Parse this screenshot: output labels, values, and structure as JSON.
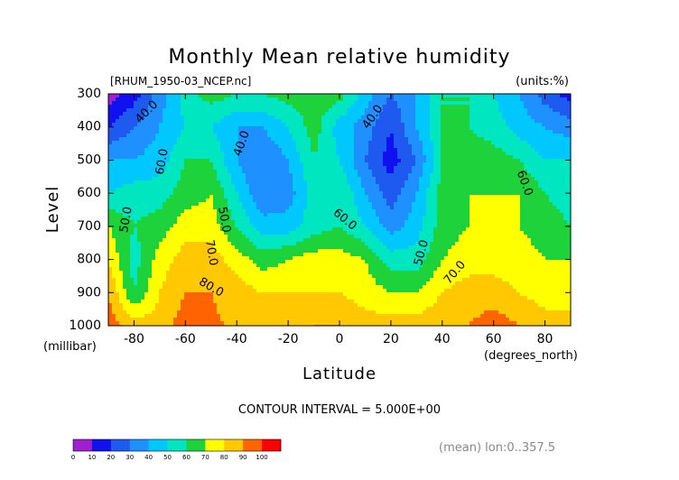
{
  "chart_data": {
    "type": "heatmap",
    "title": "Monthly Mean relative humidity",
    "source_label": "[RHUM_1950-03_NCEP.nc]",
    "units_label": "(units:%)",
    "xlabel": "Latitude",
    "ylabel": "Level",
    "y_unit_label": "(millibar)",
    "x_unit_label": "(degrees_north)",
    "footer_left": "CONTOUR INTERVAL = 5.000E+00",
    "footer_right": "(mean) lon:0..357.5",
    "xlim": [
      -90,
      90
    ],
    "ylim": [
      300,
      1000
    ],
    "x_ticks": [
      -80,
      -60,
      -40,
      -20,
      0,
      20,
      40,
      60,
      80
    ],
    "x_tick_labels": [
      "-80",
      "-60",
      "-40",
      "-20",
      "0",
      "20",
      "40",
      "60",
      "80"
    ],
    "y_ticks": [
      300,
      400,
      500,
      600,
      700,
      800,
      900,
      1000
    ],
    "y_tick_labels": [
      "300",
      "400",
      "500",
      "600",
      "700",
      "800",
      "900",
      "1000"
    ],
    "contour_interval": 5,
    "contour_labels": [
      {
        "text": "40.0",
        "lat": -75,
        "lev": 355,
        "angle": -45
      },
      {
        "text": "60.0",
        "lat": -69,
        "lev": 505,
        "angle": -80
      },
      {
        "text": "50.0",
        "lat": -83,
        "lev": 680,
        "angle": -80
      },
      {
        "text": "40.0",
        "lat": -38,
        "lev": 450,
        "angle": -70
      },
      {
        "text": "50.0",
        "lat": -45,
        "lev": 680,
        "angle": 80
      },
      {
        "text": "70.0",
        "lat": -50,
        "lev": 780,
        "angle": 80
      },
      {
        "text": "80.0",
        "lat": -50,
        "lev": 885,
        "angle": 30
      },
      {
        "text": "60.0",
        "lat": 2,
        "lev": 680,
        "angle": 40
      },
      {
        "text": "40.0",
        "lat": 13,
        "lev": 370,
        "angle": -55
      },
      {
        "text": "50.0",
        "lat": 32,
        "lev": 780,
        "angle": -75
      },
      {
        "text": "70.0",
        "lat": 45,
        "lev": 840,
        "angle": -50
      },
      {
        "text": "60.0",
        "lat": 72,
        "lev": 570,
        "angle": 70
      }
    ],
    "colorbar": {
      "levels": [
        0,
        10,
        20,
        30,
        40,
        50,
        60,
        70,
        80,
        90,
        100
      ],
      "labels": [
        "0",
        "10",
        "20",
        "30",
        "40",
        "50",
        "60",
        "70",
        "80",
        "90",
        "100"
      ],
      "colors": [
        "#a020d0",
        "#1010f0",
        "#1e5af0",
        "#1e90ff",
        "#00c8ff",
        "#00e6c0",
        "#1ed23c",
        "#ffff00",
        "#ffc800",
        "#ff6400",
        "#ff0000"
      ]
    },
    "grid_lat": [
      -90,
      -80,
      -70,
      -60,
      -50,
      -40,
      -30,
      -20,
      -10,
      0,
      10,
      20,
      30,
      40,
      50,
      60,
      70,
      80,
      90
    ],
    "grid_lev": [
      300,
      400,
      500,
      600,
      700,
      800,
      900,
      1000
    ],
    "values": [
      [
        5,
        15,
        35,
        55,
        65,
        60,
        60,
        65,
        65,
        65,
        45,
        30,
        40,
        60,
        60,
        50,
        40,
        25,
        15
      ],
      [
        20,
        30,
        40,
        50,
        50,
        40,
        40,
        50,
        65,
        45,
        35,
        20,
        40,
        60,
        60,
        55,
        45,
        40,
        35
      ],
      [
        40,
        40,
        45,
        60,
        60,
        40,
        30,
        40,
        60,
        50,
        30,
        15,
        30,
        60,
        65,
        65,
        60,
        50,
        50
      ],
      [
        50,
        55,
        55,
        65,
        70,
        50,
        30,
        35,
        55,
        60,
        40,
        25,
        40,
        65,
        70,
        70,
        70,
        60,
        55
      ],
      [
        70,
        60,
        65,
        75,
        75,
        60,
        45,
        45,
        55,
        60,
        50,
        35,
        45,
        65,
        70,
        75,
        70,
        65,
        60
      ],
      [
        80,
        55,
        75,
        85,
        85,
        75,
        65,
        70,
        75,
        75,
        70,
        55,
        55,
        70,
        75,
        75,
        75,
        70,
        70
      ],
      [
        90,
        60,
        80,
        90,
        90,
        85,
        80,
        80,
        80,
        80,
        75,
        70,
        70,
        80,
        85,
        85,
        80,
        75,
        75
      ],
      [
        95,
        85,
        85,
        95,
        92,
        88,
        88,
        88,
        90,
        90,
        85,
        85,
        85,
        88,
        90,
        95,
        90,
        85,
        85
      ]
    ]
  }
}
